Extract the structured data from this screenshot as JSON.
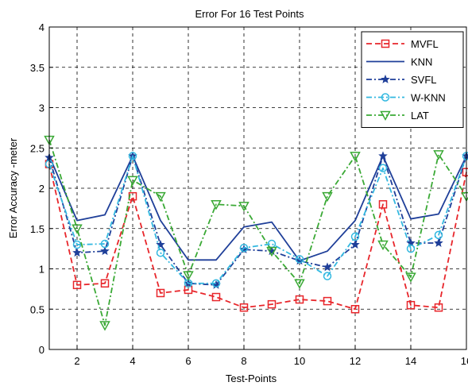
{
  "chart_data": {
    "type": "line",
    "title": "Error For 16 Test Points",
    "xlabel": "Test-Points",
    "ylabel": "Error Accuracy -meter",
    "xlim": [
      1,
      16
    ],
    "ylim": [
      0,
      4
    ],
    "xticks": [
      2,
      4,
      6,
      8,
      10,
      12,
      14,
      16
    ],
    "yticks": [
      0,
      0.5,
      1,
      1.5,
      2,
      2.5,
      3,
      3.5,
      4
    ],
    "grid": true,
    "legend_position": "top-right",
    "x": [
      1,
      2,
      3,
      4,
      5,
      6,
      7,
      8,
      9,
      10,
      11,
      12,
      13,
      14,
      15,
      16
    ],
    "series": [
      {
        "name": "MVFL",
        "color": "#e8262b",
        "dash": "dashed",
        "marker": "square",
        "values": [
          2.3,
          0.8,
          0.82,
          1.9,
          0.7,
          0.74,
          0.65,
          0.52,
          0.56,
          0.62,
          0.6,
          0.5,
          1.8,
          0.55,
          0.52,
          2.2
        ]
      },
      {
        "name": "KNN",
        "color": "#1f3f99",
        "dash": "solid",
        "marker": "none",
        "values": [
          2.4,
          1.6,
          1.67,
          2.4,
          1.6,
          1.11,
          1.11,
          1.52,
          1.58,
          1.1,
          1.22,
          1.6,
          2.4,
          1.62,
          1.68,
          2.4
        ]
      },
      {
        "name": "SVFL",
        "color": "#1f3f99",
        "dash": "dashdot",
        "marker": "star",
        "values": [
          2.38,
          1.2,
          1.22,
          2.4,
          1.3,
          0.82,
          0.8,
          1.24,
          1.22,
          1.1,
          1.02,
          1.3,
          2.4,
          1.32,
          1.32,
          2.4
        ]
      },
      {
        "name": "W-KNN",
        "color": "#33b8e0",
        "dash": "dashdot",
        "marker": "circle",
        "values": [
          2.3,
          1.3,
          1.31,
          2.4,
          1.2,
          0.82,
          0.82,
          1.26,
          1.31,
          1.12,
          0.91,
          1.4,
          2.25,
          1.25,
          1.42,
          2.4
        ]
      },
      {
        "name": "LAT",
        "color": "#3aa935",
        "dash": "dashdot",
        "marker": "triangle-down",
        "values": [
          2.6,
          1.5,
          0.3,
          2.1,
          1.9,
          0.92,
          1.8,
          1.78,
          1.22,
          0.82,
          1.9,
          2.4,
          1.3,
          0.9,
          2.42,
          1.9
        ]
      }
    ]
  }
}
